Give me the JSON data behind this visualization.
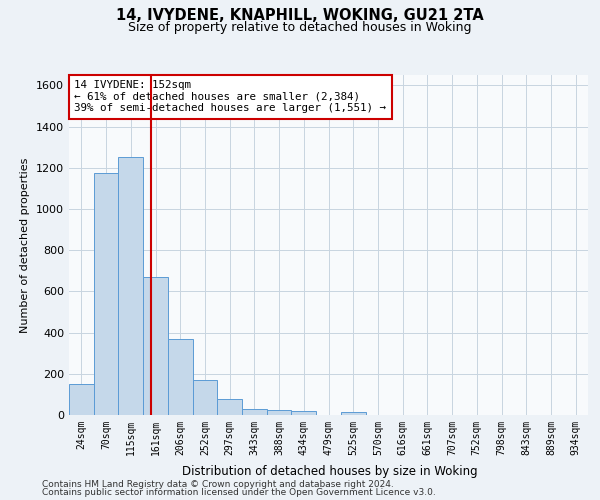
{
  "title1": "14, IVYDENE, KNAPHILL, WOKING, GU21 2TA",
  "title2": "Size of property relative to detached houses in Woking",
  "xlabel": "Distribution of detached houses by size in Woking",
  "ylabel": "Number of detached properties",
  "categories": [
    "24sqm",
    "70sqm",
    "115sqm",
    "161sqm",
    "206sqm",
    "252sqm",
    "297sqm",
    "343sqm",
    "388sqm",
    "434sqm",
    "479sqm",
    "525sqm",
    "570sqm",
    "616sqm",
    "661sqm",
    "707sqm",
    "752sqm",
    "798sqm",
    "843sqm",
    "889sqm",
    "934sqm"
  ],
  "values": [
    150,
    1175,
    1250,
    670,
    370,
    170,
    80,
    30,
    25,
    20,
    0,
    15,
    0,
    0,
    0,
    0,
    0,
    0,
    0,
    0,
    0
  ],
  "bar_color": "#c5d8ea",
  "bar_edge_color": "#5b9bd5",
  "vline_color": "#cc0000",
  "annotation_line1": "14 IVYDENE: 152sqm",
  "annotation_line2": "← 61% of detached houses are smaller (2,384)",
  "annotation_line3": "39% of semi-detached houses are larger (1,551) →",
  "annotation_box_color": "white",
  "annotation_box_edge": "#cc0000",
  "ylim": [
    0,
    1650
  ],
  "yticks": [
    0,
    200,
    400,
    600,
    800,
    1000,
    1200,
    1400,
    1600
  ],
  "footer1": "Contains HM Land Registry data © Crown copyright and database right 2024.",
  "footer2": "Contains public sector information licensed under the Open Government Licence v3.0.",
  "bg_color": "#edf2f7",
  "plot_bg_color": "#f8fafc",
  "grid_color": "#c8d4e0"
}
